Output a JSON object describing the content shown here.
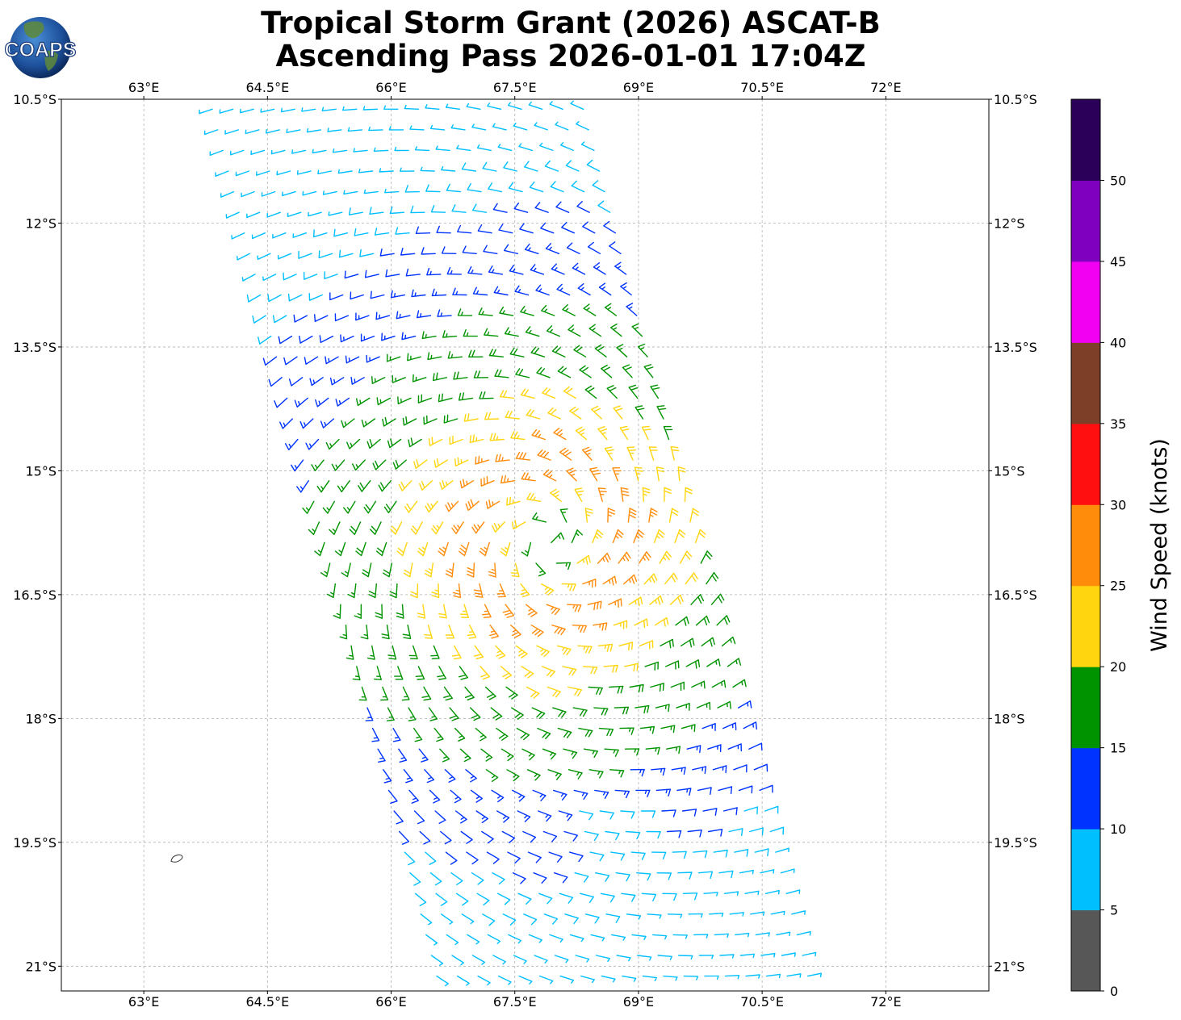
{
  "header": {
    "title_line1": "Tropical Storm Grant (2026) ASCAT-B",
    "title_line2": "Ascending Pass 2026-01-01 17:04Z"
  },
  "logo": {
    "text": "COAPS",
    "icon": "globe-logo-icon"
  },
  "map": {
    "lon_range": [
      62.0,
      73.25
    ],
    "lat_range": [
      -21.3,
      -10.5
    ],
    "lon_ticks": [
      {
        "value": 63.0,
        "label": "63°E"
      },
      {
        "value": 64.5,
        "label": "64.5°E"
      },
      {
        "value": 66.0,
        "label": "66°E"
      },
      {
        "value": 67.5,
        "label": "67.5°E"
      },
      {
        "value": 69.0,
        "label": "69°E"
      },
      {
        "value": 70.5,
        "label": "70.5°E"
      },
      {
        "value": 72.0,
        "label": "72°E"
      }
    ],
    "lat_ticks": [
      {
        "value": -10.5,
        "label": "10.5°S"
      },
      {
        "value": -12.0,
        "label": "12°S"
      },
      {
        "value": -13.5,
        "label": "13.5°S"
      },
      {
        "value": -15.0,
        "label": "15°S"
      },
      {
        "value": -16.5,
        "label": "16.5°S"
      },
      {
        "value": -18.0,
        "label": "18°S"
      },
      {
        "value": -19.5,
        "label": "19.5°S"
      },
      {
        "value": -21.0,
        "label": "21°S"
      }
    ],
    "grid": true,
    "storm_center": {
      "lon": 67.9,
      "lat": -15.85
    },
    "swath": {
      "north_left_lon": 63.8,
      "north_lat": -10.5,
      "south_left_lon": 66.6,
      "south_lat": -21.3,
      "width_deg": 4.7
    },
    "island": {
      "lon": 63.4,
      "lat": -19.7
    }
  },
  "colorbar": {
    "label": "Wind Speed (knots)",
    "ticks": [
      "0",
      "5",
      "10",
      "15",
      "20",
      "25",
      "30",
      "35",
      "40",
      "45",
      "50"
    ],
    "bins": [
      {
        "min": 0,
        "max": 5,
        "color": "#575757"
      },
      {
        "min": 5,
        "max": 10,
        "color": "#00bfff"
      },
      {
        "min": 10,
        "max": 15,
        "color": "#0033ff"
      },
      {
        "min": 15,
        "max": 20,
        "color": "#009300"
      },
      {
        "min": 20,
        "max": 25,
        "color": "#ffd50f"
      },
      {
        "min": 25,
        "max": 30,
        "color": "#ff8c0b"
      },
      {
        "min": 30,
        "max": 35,
        "color": "#ff0f0f"
      },
      {
        "min": 35,
        "max": 40,
        "color": "#7e3f28"
      },
      {
        "min": 40,
        "max": 45,
        "color": "#f200f2"
      },
      {
        "min": 45,
        "max": 50,
        "color": "#8000bf"
      },
      {
        "min": 50,
        "max": 55,
        "color": "#2b0059"
      }
    ]
  }
}
